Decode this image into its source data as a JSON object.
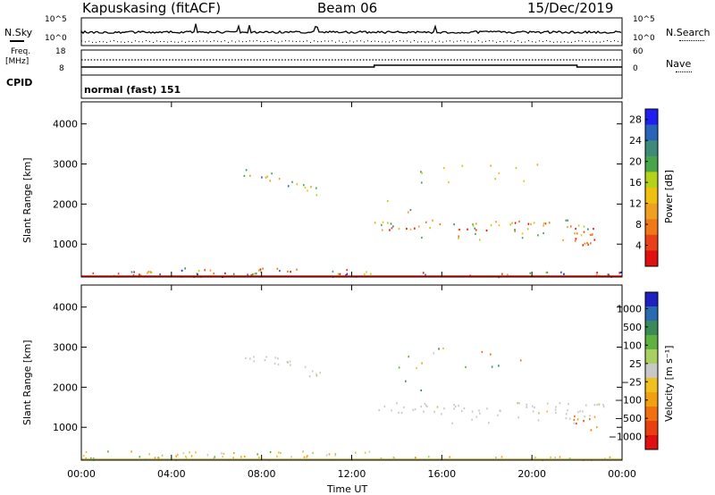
{
  "header": {
    "station": "Kapuskasing (fitACF)",
    "beam": "Beam 06",
    "date": "15/Dec/2019"
  },
  "sky_panel": {
    "left_label": "N.Sky",
    "left_ticks": [
      "10^5",
      "10^0"
    ],
    "right_label": "N.Search",
    "right_ticks": [
      "10^5",
      "10^0"
    ]
  },
  "freq_panel": {
    "left_label_1": "Freq.",
    "left_label_2": "[MHz]",
    "left_ticks": [
      "18",
      "8"
    ],
    "right_label": "Nave",
    "right_ticks": [
      "60",
      "0"
    ]
  },
  "cpid": {
    "label": "CPID",
    "value": "normal (fast) 151"
  },
  "chart_data": [
    {
      "type": "heatmap",
      "parameter": "Power",
      "ylabel": "Slant Range [km]",
      "xlabel": "Time UT",
      "ylim": [
        180,
        4550
      ],
      "xlim_hours": [
        0,
        24
      ],
      "y_ticks": [
        "1000",
        "2000",
        "3000",
        "4000"
      ],
      "x_ticks": [
        "00:00",
        "04:00",
        "08:00",
        "12:00",
        "16:00",
        "20:00",
        "00:00"
      ],
      "colorbar": {
        "label": "Power [dB]",
        "ticks": [
          "4",
          "8",
          "12",
          "16",
          "20",
          "24",
          "28"
        ],
        "colors": [
          "#1f1ff0",
          "#2a64b8",
          "#3d8a7a",
          "#4aa54a",
          "#b5d21a",
          "#f0c010",
          "#f0a020",
          "#f07818",
          "#e84018",
          "#e01010"
        ]
      }
    },
    {
      "type": "heatmap",
      "parameter": "Velocity",
      "ylabel": "Slant Range [km]",
      "xlabel": "Time UT",
      "ylim": [
        180,
        4550
      ],
      "xlim_hours": [
        0,
        24
      ],
      "y_ticks": [
        "1000",
        "2000",
        "3000",
        "4000"
      ],
      "x_ticks": [
        "00:00",
        "04:00",
        "08:00",
        "12:00",
        "16:00",
        "20:00",
        "00:00"
      ],
      "colorbar": {
        "label": "Velocity [m s⁻¹]",
        "ticks": [
          "1000",
          "500",
          "100",
          "25",
          "−25",
          "−100",
          "−500",
          "−1000"
        ],
        "colors": [
          "#2020c0",
          "#2a6ab0",
          "#3a8a5a",
          "#60b040",
          "#a8d060",
          "#c8c8c8",
          "#f0c020",
          "#f0a010",
          "#f07010",
          "#e84010",
          "#e01010"
        ]
      }
    }
  ]
}
